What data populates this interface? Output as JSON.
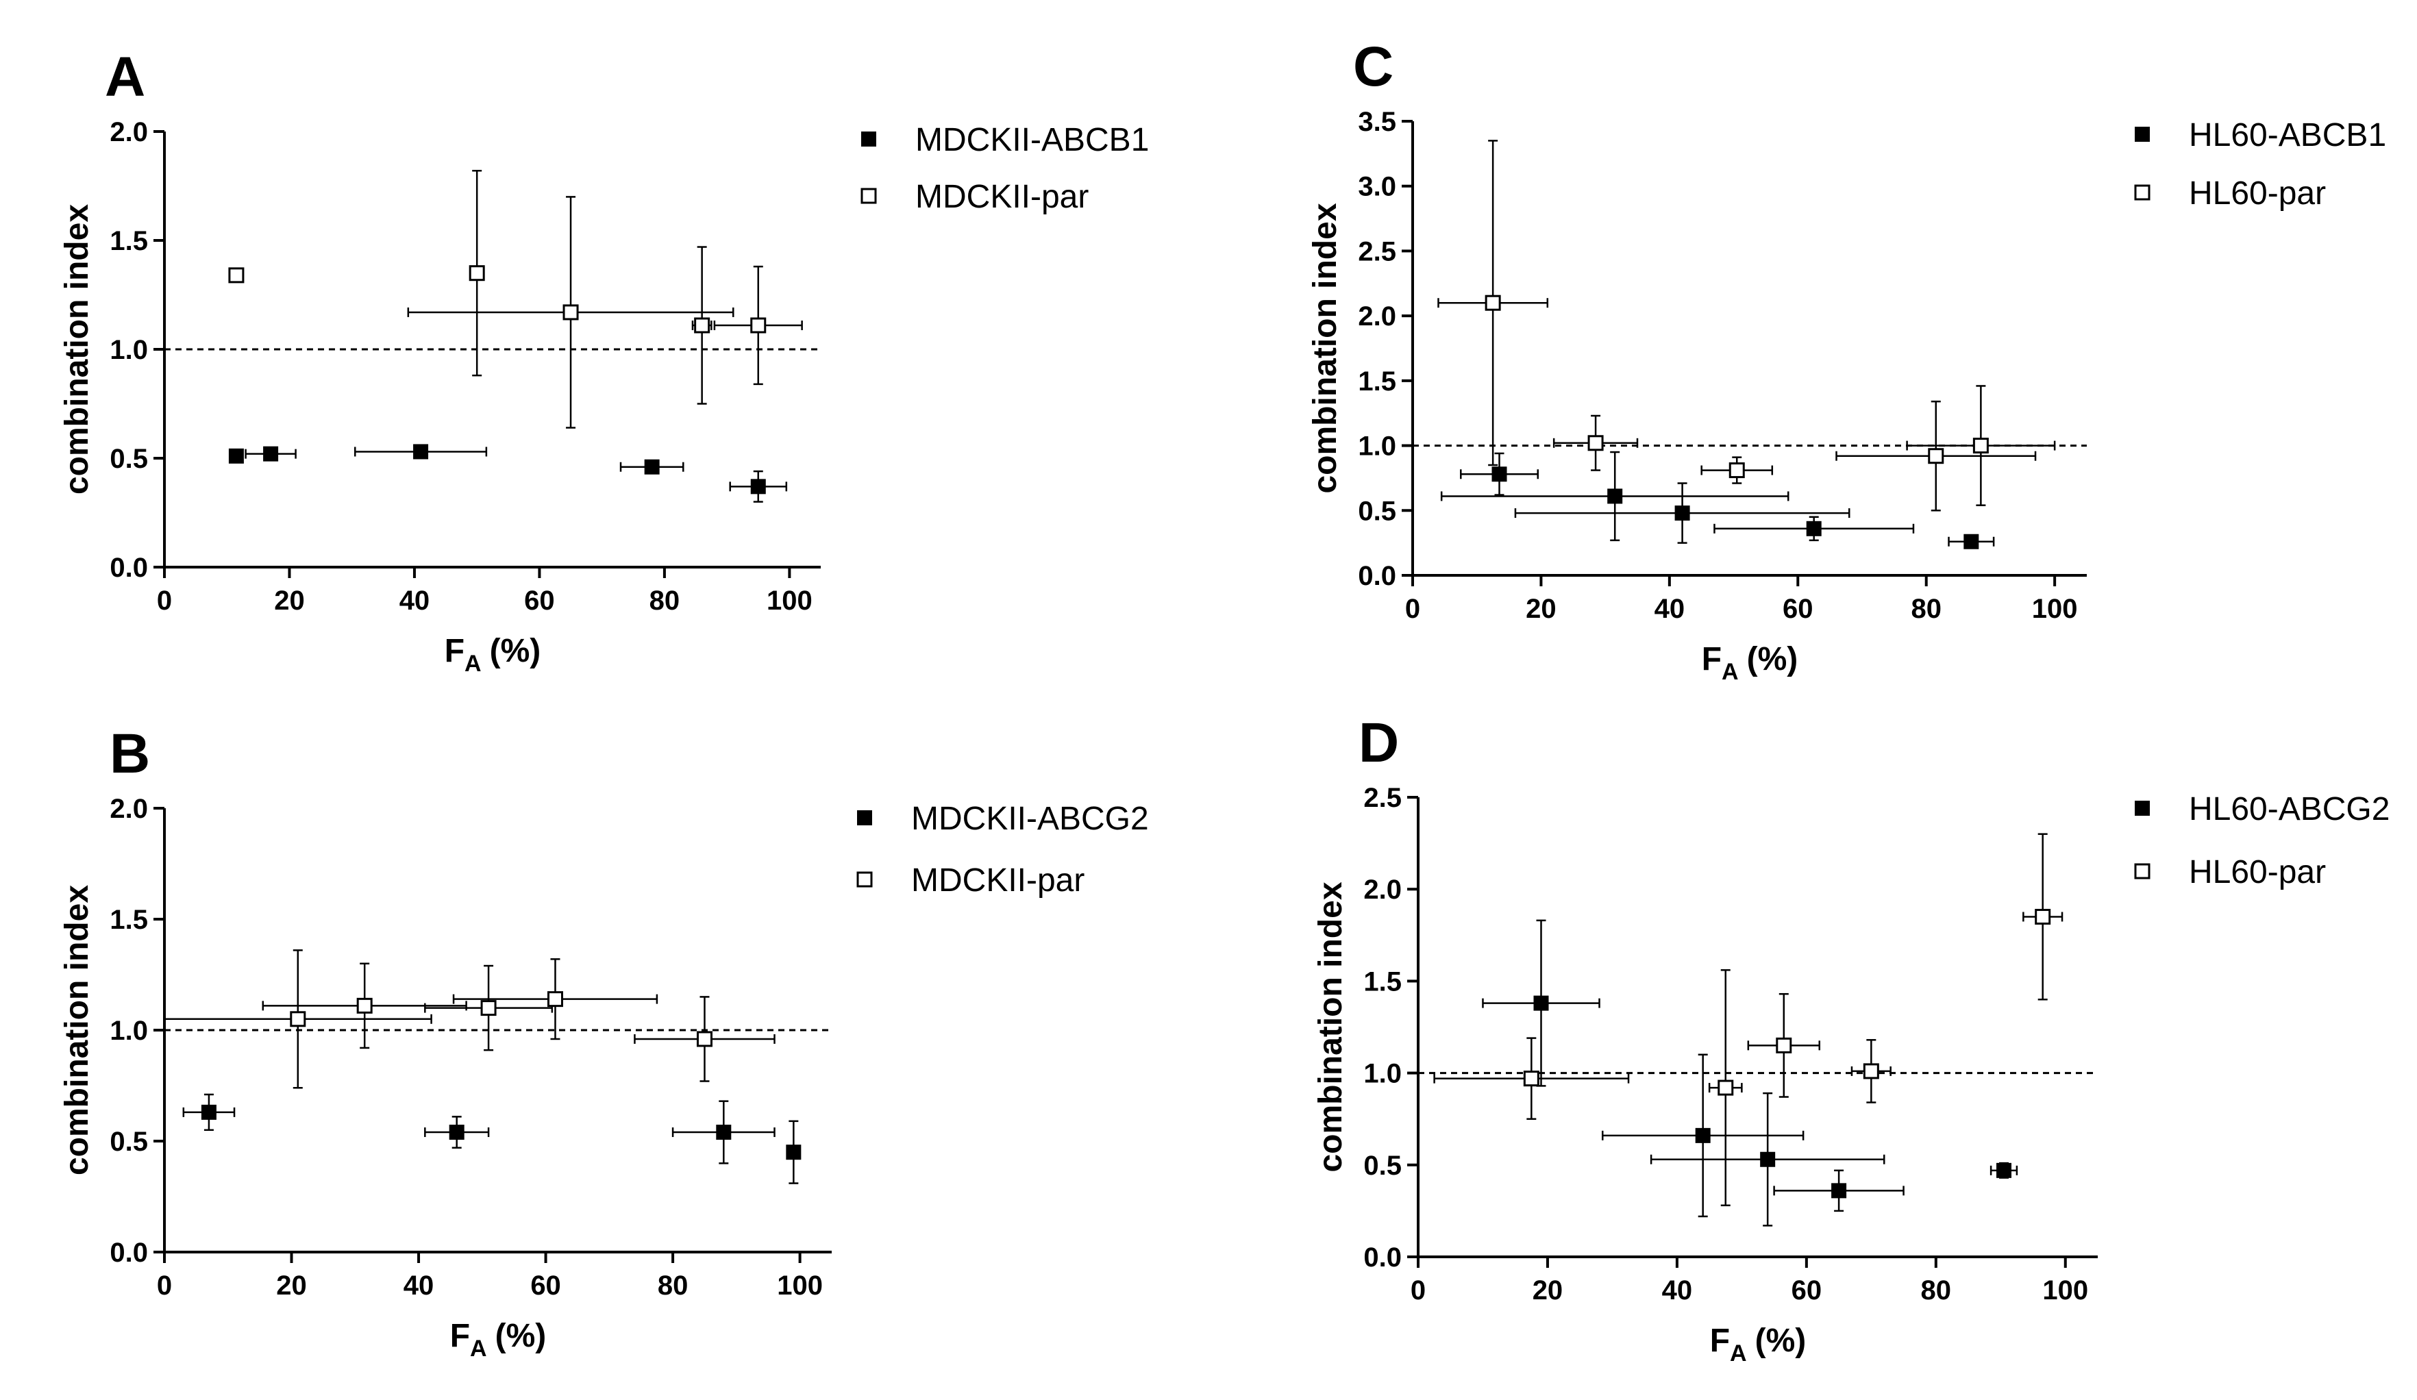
{
  "chart_data": [
    {
      "panel": "A",
      "type": "scatter",
      "xlabel_main": "F",
      "xlabel_sub": "A",
      "xlabel_unit": "(%)",
      "ylabel": "combination index",
      "xlim": [
        0,
        105
      ],
      "ylim": [
        0,
        2.0
      ],
      "xticks": [
        0,
        20,
        40,
        60,
        80,
        100
      ],
      "yticks": [
        0.0,
        0.5,
        1.0,
        1.5,
        2.0
      ],
      "xtick_labels": [
        "0",
        "20",
        "40",
        "60",
        "80",
        "100"
      ],
      "ytick_labels": [
        "0.0",
        "0.5",
        "1.0",
        "1.5",
        "2.0"
      ],
      "reference_line": 1.0,
      "legend_position": "right",
      "series": [
        {
          "name": "MDCKII-ABCB1",
          "marker": "filled-square",
          "points": [
            {
              "x": 11.5,
              "y": 0.51,
              "xerr": 0,
              "yerr": 0
            },
            {
              "x": 17,
              "y": 0.52,
              "xerr": 4,
              "yerr": 0.02
            },
            {
              "x": 41,
              "y": 0.53,
              "xerr": 10.5,
              "yerr": 0.02
            },
            {
              "x": 78,
              "y": 0.46,
              "xerr": 5,
              "yerr": 0.02
            },
            {
              "x": 95,
              "y": 0.37,
              "xerr": 4.5,
              "yerr": 0.07
            }
          ]
        },
        {
          "name": "MDCKII-par",
          "marker": "open-square",
          "points": [
            {
              "x": 11.5,
              "y": 1.34,
              "xerr": 0,
              "yerr": 0
            },
            {
              "x": 50,
              "y": 1.35,
              "xerr": 0,
              "yerr": 0.47
            },
            {
              "x": 65,
              "y": 1.17,
              "xerr": 26,
              "yerr": 0.53
            },
            {
              "x": 86,
              "y": 1.11,
              "xerr": 1.5,
              "yerr": 0.36
            },
            {
              "x": 95,
              "y": 1.11,
              "xerr": 7,
              "yerr": 0.27
            }
          ]
        }
      ]
    },
    {
      "panel": "B",
      "type": "scatter",
      "xlabel_main": "F",
      "xlabel_sub": "A",
      "xlabel_unit": "(%)",
      "ylabel": "combination index",
      "xlim": [
        0,
        105
      ],
      "ylim": [
        0,
        2.0
      ],
      "xticks": [
        0,
        20,
        40,
        60,
        80,
        100
      ],
      "yticks": [
        0.0,
        0.5,
        1.0,
        1.5,
        2.0
      ],
      "xtick_labels": [
        "0",
        "20",
        "40",
        "60",
        "80",
        "100"
      ],
      "ytick_labels": [
        "0.0",
        "0.5",
        "1.0",
        "1.5",
        "2.0"
      ],
      "reference_line": 1.0,
      "legend_position": "right",
      "series": [
        {
          "name": "MDCKII-ABCG2",
          "marker": "filled-square",
          "points": [
            {
              "x": 7,
              "y": 0.63,
              "xerr": 4,
              "yerr": 0.08
            },
            {
              "x": 46,
              "y": 0.54,
              "xerr": 5,
              "yerr": 0.07
            },
            {
              "x": 88,
              "y": 0.54,
              "xerr": 8,
              "yerr": 0.14
            },
            {
              "x": 99,
              "y": 0.45,
              "xerr": 0,
              "yerr": 0.14
            }
          ]
        },
        {
          "name": "MDCKII-par",
          "marker": "open-square",
          "points": [
            {
              "x": 21,
              "y": 1.05,
              "xerr": 21,
              "yerr": 0.31
            },
            {
              "x": 31.5,
              "y": 1.11,
              "xerr": 16,
              "yerr": 0.19
            },
            {
              "x": 51,
              "y": 1.1,
              "xerr": 10,
              "yerr": 0.19
            },
            {
              "x": 61.5,
              "y": 1.14,
              "xerr": 16,
              "yerr": 0.18
            },
            {
              "x": 85,
              "y": 0.96,
              "xerr": 11,
              "yerr": 0.19
            }
          ]
        }
      ]
    },
    {
      "panel": "C",
      "type": "scatter",
      "xlabel_main": "F",
      "xlabel_sub": "A",
      "xlabel_unit": "(%)",
      "ylabel": "combination index",
      "xlim": [
        0,
        105
      ],
      "ylim": [
        0,
        3.5
      ],
      "xticks": [
        0,
        20,
        40,
        60,
        80,
        100
      ],
      "yticks": [
        0.0,
        0.5,
        1.0,
        1.5,
        2.0,
        2.5,
        3.0,
        3.5
      ],
      "xtick_labels": [
        "0",
        "20",
        "40",
        "60",
        "80",
        "100"
      ],
      "ytick_labels": [
        "0.0",
        "0.5",
        "1.0",
        "1.5",
        "2.0",
        "2.5",
        "3.0",
        "3.5"
      ],
      "reference_line": 1.0,
      "legend_position": "right",
      "series": [
        {
          "name": "HL60-ABCB1",
          "marker": "filled-square",
          "points": [
            {
              "x": 13.5,
              "y": 0.78,
              "xerr": 6,
              "yerr": 0.16
            },
            {
              "x": 31.5,
              "y": 0.61,
              "xerr": 27,
              "yerr": 0.34
            },
            {
              "x": 42,
              "y": 0.48,
              "xerr": 26,
              "yerr": 0.23
            },
            {
              "x": 62.5,
              "y": 0.36,
              "xerr": 15.5,
              "yerr": 0.09
            },
            {
              "x": 87,
              "y": 0.26,
              "xerr": 3.5,
              "yerr": 0.04
            }
          ]
        },
        {
          "name": "HL60-par",
          "marker": "open-square",
          "points": [
            {
              "x": 12.5,
              "y": 2.1,
              "xerr": 8.5,
              "yerr": 1.25
            },
            {
              "x": 28.5,
              "y": 1.02,
              "xerr": 6.5,
              "yerr": 0.21
            },
            {
              "x": 50.5,
              "y": 0.81,
              "xerr": 5.5,
              "yerr": 0.1
            },
            {
              "x": 81.5,
              "y": 0.92,
              "xerr": 15.5,
              "yerr": 0.42
            },
            {
              "x": 88.5,
              "y": 1.0,
              "xerr": 11.5,
              "yerr": 0.46
            }
          ]
        }
      ]
    },
    {
      "panel": "D",
      "type": "scatter",
      "xlabel_main": "F",
      "xlabel_sub": "A",
      "xlabel_unit": "(%)",
      "ylabel": "combination index",
      "xlim": [
        0,
        105
      ],
      "ylim": [
        0,
        2.5
      ],
      "xticks": [
        0,
        20,
        40,
        60,
        80,
        100
      ],
      "yticks": [
        0.0,
        0.5,
        1.0,
        1.5,
        2.0,
        2.5
      ],
      "xtick_labels": [
        "0",
        "20",
        "40",
        "60",
        "80",
        "100"
      ],
      "ytick_labels": [
        "0.0",
        "0.5",
        "1.0",
        "1.5",
        "2.0",
        "2.5"
      ],
      "reference_line": 1.0,
      "legend_position": "right",
      "series": [
        {
          "name": "HL60-ABCG2",
          "marker": "filled-square",
          "points": [
            {
              "x": 19,
              "y": 1.38,
              "xerr": 9,
              "yerr": 0.45
            },
            {
              "x": 44,
              "y": 0.66,
              "xerr": 15.5,
              "yerr": 0.44
            },
            {
              "x": 54,
              "y": 0.53,
              "xerr": 18,
              "yerr": 0.36
            },
            {
              "x": 65,
              "y": 0.36,
              "xerr": 10,
              "yerr": 0.11
            },
            {
              "x": 90.5,
              "y": 0.47,
              "xerr": 2,
              "yerr": 0.04
            }
          ]
        },
        {
          "name": "HL60-par",
          "marker": "open-square",
          "points": [
            {
              "x": 17.5,
              "y": 0.97,
              "xerr": 15,
              "yerr": 0.22
            },
            {
              "x": 47.5,
              "y": 0.92,
              "xerr": 2.5,
              "yerr": 0.64
            },
            {
              "x": 56.5,
              "y": 1.15,
              "xerr": 5.5,
              "yerr": 0.28
            },
            {
              "x": 70,
              "y": 1.01,
              "xerr": 3,
              "yerr": 0.17
            },
            {
              "x": 96.5,
              "y": 1.85,
              "xerr": 3,
              "yerr": 0.45
            }
          ]
        }
      ]
    }
  ]
}
